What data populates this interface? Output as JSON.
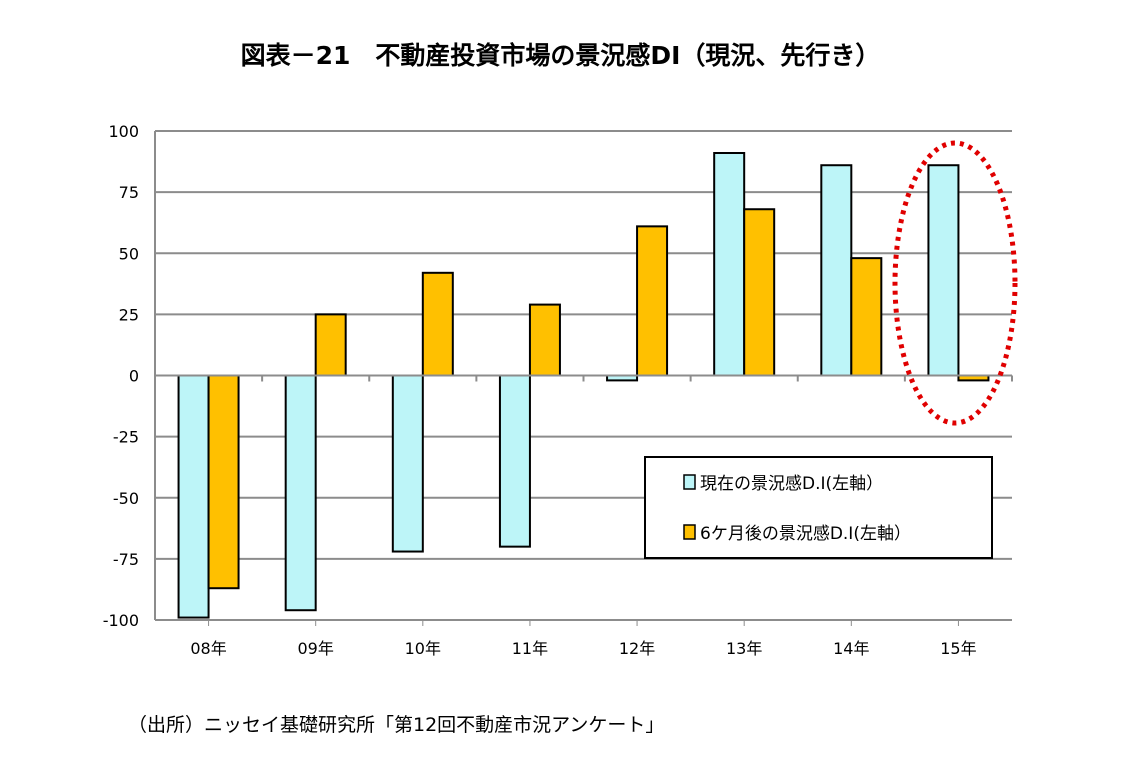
{
  "title": "図表－21　不動産投資市場の景況感DI（現況、先行き）",
  "source": "（出所）ニッセイ基礎研究所「第12回不動産市況アンケート」",
  "colors": {
    "current": "#BDF5F8",
    "future": "#FFC000",
    "highlight": "#E00000"
  },
  "chart_data": {
    "type": "bar",
    "title": "図表－21　不動産投資市場の景況感DI（現況、先行き）",
    "categories": [
      "08年",
      "09年",
      "10年",
      "11年",
      "12年",
      "13年",
      "14年",
      "15年"
    ],
    "series": [
      {
        "name": "現在の景況感D.I(左軸）",
        "values": [
          -99,
          -96,
          -72,
          -70,
          -2,
          91,
          86,
          86
        ]
      },
      {
        "name": "6ケ月後の景況感D.I(左軸）",
        "values": [
          -87,
          25,
          42,
          29,
          61,
          68,
          48,
          -2
        ]
      }
    ],
    "ylim": [
      -100,
      100
    ],
    "yticks": [
      100,
      75,
      50,
      25,
      0,
      -25,
      -50,
      -75,
      -100
    ],
    "grid": true,
    "legend": "bottom-right",
    "annotation": "red dotted ellipse highlighting 15年"
  }
}
